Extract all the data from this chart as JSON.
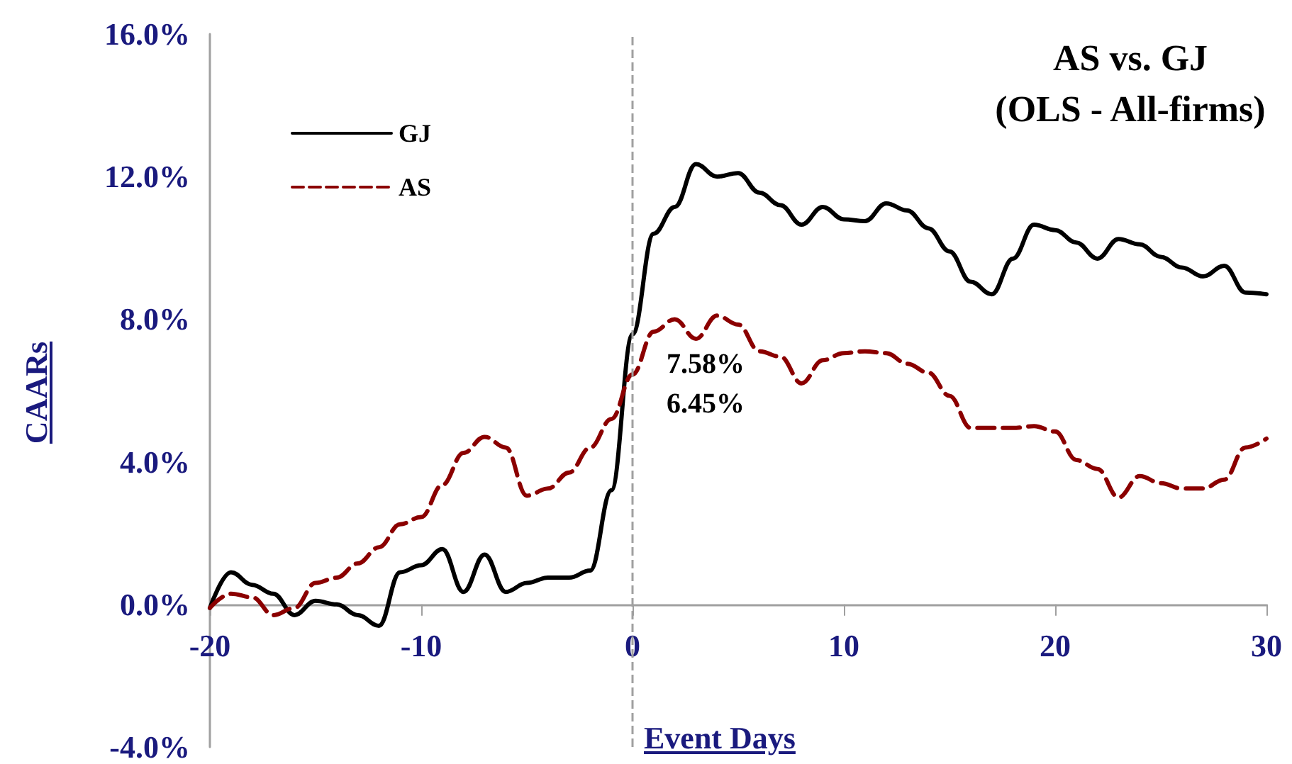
{
  "chart_data": {
    "type": "line",
    "title": "AS vs. GJ\n(OLS - All-firms)",
    "xlabel": "Event Days",
    "ylabel": "CAARs",
    "x": [
      -20,
      -19,
      -18,
      -17,
      -16,
      -15,
      -14,
      -13,
      -12,
      -11,
      -10,
      -9,
      -8,
      -7,
      -6,
      -5,
      -4,
      -3,
      -2,
      -1,
      0,
      1,
      2,
      3,
      4,
      5,
      6,
      7,
      8,
      9,
      10,
      11,
      12,
      13,
      14,
      15,
      16,
      17,
      18,
      19,
      20,
      21,
      22,
      23,
      24,
      25,
      26,
      27,
      28,
      29,
      30
    ],
    "series": [
      {
        "name": "GJ",
        "color": "#000000",
        "line_style": "solid",
        "values": [
          -0.1,
          0.9,
          0.55,
          0.3,
          -0.3,
          0.1,
          0.0,
          -0.3,
          -0.6,
          0.9,
          1.1,
          1.55,
          0.35,
          1.4,
          0.35,
          0.6,
          0.75,
          0.75,
          0.95,
          3.2,
          7.58,
          10.4,
          11.15,
          12.35,
          12.0,
          12.1,
          11.55,
          11.2,
          10.65,
          11.15,
          10.8,
          10.75,
          11.25,
          11.05,
          10.55,
          9.9,
          9.05,
          8.7,
          9.7,
          10.65,
          10.5,
          10.15,
          9.7,
          10.25,
          10.1,
          9.75,
          9.45,
          9.2,
          9.5,
          8.75,
          8.7
        ]
      },
      {
        "name": "AS",
        "color": "#8b0000",
        "line_style": "dashed",
        "values": [
          -0.1,
          0.3,
          0.2,
          -0.3,
          -0.1,
          0.6,
          0.75,
          1.15,
          1.6,
          2.25,
          2.45,
          3.35,
          4.25,
          4.7,
          4.4,
          3.05,
          3.25,
          3.7,
          4.4,
          5.2,
          6.45,
          7.65,
          8.0,
          7.45,
          8.1,
          7.85,
          7.1,
          6.95,
          6.2,
          6.85,
          7.05,
          7.1,
          7.05,
          6.75,
          6.5,
          5.85,
          4.95,
          4.95,
          4.95,
          5.0,
          4.85,
          4.05,
          3.8,
          3.0,
          3.6,
          3.4,
          3.25,
          3.25,
          3.5,
          4.4,
          4.65
        ]
      }
    ],
    "xlim": [
      -20,
      30
    ],
    "xticks": [
      -20,
      -10,
      0,
      10,
      20,
      30
    ],
    "ylim": [
      -4,
      16
    ],
    "yticks": [
      {
        "value": -4,
        "label": "-4.0%"
      },
      {
        "value": 0,
        "label": "0.0%"
      },
      {
        "value": 4,
        "label": "4.0%"
      },
      {
        "value": 8,
        "label": "8.0%"
      },
      {
        "value": 12,
        "label": "12.0%"
      },
      {
        "value": 16,
        "label": "16.0%"
      }
    ],
    "ref_lines": [
      {
        "axis": "x",
        "value": 0,
        "label": null,
        "color": "#a0a0a0",
        "line_style": "dashed"
      }
    ],
    "annotations": [
      {
        "text": "7.58%",
        "x": 0,
        "y": 7.58
      },
      {
        "text": "6.45%",
        "x": 0,
        "y": 6.45
      }
    ],
    "grid": false,
    "legend": "top left",
    "marker": "none"
  }
}
